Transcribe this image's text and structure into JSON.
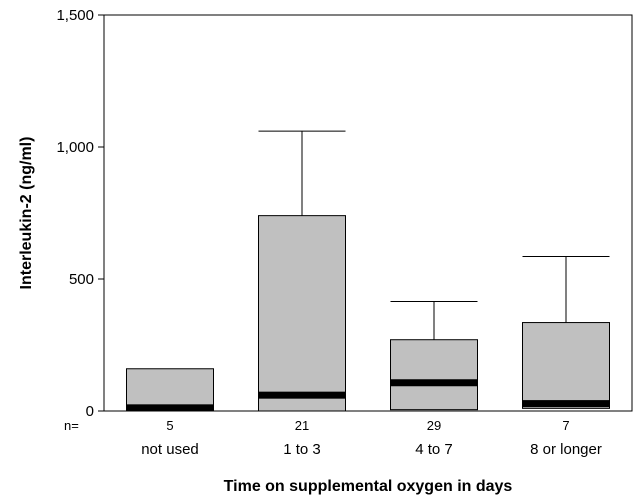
{
  "chart_data": {
    "type": "boxplot",
    "xlabel": "Time on supplemental oxygen in days",
    "ylabel": "Interleukin-2 (ng/ml)",
    "ylim": [
      0,
      1500
    ],
    "yticks": [
      0,
      500,
      1000,
      1500
    ],
    "ytick_labels": [
      "0",
      "500",
      "1,000",
      "1,500"
    ],
    "n_label": "n=",
    "categories": [
      "not used",
      "1 to 3",
      "4 to 7",
      "8 or longer"
    ],
    "n": [
      "5",
      "21",
      "29",
      "7"
    ],
    "boxes": [
      {
        "whisker_low": 0,
        "q1": 0,
        "median": 12,
        "q3": 160,
        "whisker_high": 160
      },
      {
        "whisker_low": 0,
        "q1": 0,
        "median": 60,
        "q3": 740,
        "whisker_high": 1060
      },
      {
        "whisker_low": 0,
        "q1": 5,
        "median": 107,
        "q3": 270,
        "whisker_high": 415
      },
      {
        "whisker_low": 0,
        "q1": 10,
        "median": 28,
        "q3": 335,
        "whisker_high": 585
      }
    ],
    "box_color": "#c0c0c0",
    "median_color": "#000000",
    "grid": false
  }
}
